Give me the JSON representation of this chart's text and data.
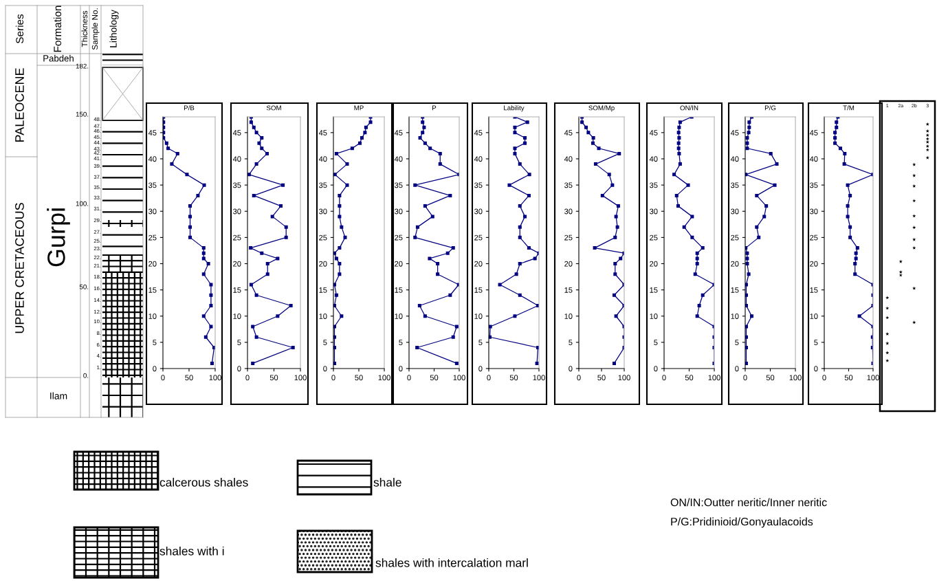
{
  "chart_data": [
    {
      "type": "other",
      "annotations": [
        "Series",
        "Formation",
        "Thickness",
        "Sample No.",
        "Lithology",
        "Pabdeh",
        "PALEOCENE",
        "UPPER CRETACEOUS",
        "Gurpi",
        "Ilam",
        "182.",
        "150.",
        "100.",
        "50.",
        "0.",
        "48.",
        "47.",
        "46.",
        "45.",
        "44.",
        "43.",
        "42.",
        "41.",
        "39.",
        "37.",
        "35.",
        "33.",
        "31.",
        "29.",
        "27.",
        "25.",
        "23.",
        "22.",
        "21.",
        "18.",
        "16.",
        "14.",
        "12.",
        "10.",
        "8.",
        "6.",
        "4.",
        "1."
      ]
    },
    {
      "type": "line",
      "title": "P/B",
      "xlim": [
        0,
        100
      ],
      "ylim": [
        0,
        48
      ],
      "xticks": [
        0,
        50,
        100
      ],
      "yticks": [
        0,
        5,
        10,
        15,
        20,
        25,
        30,
        35,
        40,
        45
      ],
      "marker": "square",
      "series": [
        {
          "color": "#000080",
          "x": [
            94,
            98,
            82,
            92,
            78,
            92,
            92,
            92,
            78,
            87,
            78,
            78,
            78,
            52,
            52,
            52,
            52,
            67,
            79,
            46,
            17,
            28,
            10,
            7,
            1,
            1,
            1,
            1,
            1
          ],
          "values": [
            1,
            4,
            6,
            8,
            10,
            12,
            14,
            16,
            18,
            20,
            21,
            22,
            23,
            25,
            27,
            29,
            31,
            33,
            35,
            37,
            39,
            41,
            42,
            43,
            44,
            45,
            46,
            47,
            48
          ]
        }
      ]
    },
    {
      "type": "line",
      "title": "SOM",
      "xlim": [
        0,
        100
      ],
      "ylim": [
        0,
        48
      ],
      "xticks": [
        0,
        50,
        100
      ],
      "yticks": [
        0,
        5,
        10,
        15,
        20,
        25,
        30,
        35,
        40,
        45
      ],
      "marker": "square",
      "series": [
        {
          "color": "#000080",
          "x": [
            10,
            86,
            17,
            10,
            57,
            82,
            17,
            7,
            38,
            38,
            57,
            27,
            6,
            73,
            73,
            47,
            63,
            12,
            67,
            3,
            17,
            37,
            27,
            22,
            27,
            17,
            12,
            7,
            7
          ],
          "values": [
            1,
            4,
            6,
            8,
            10,
            12,
            14,
            16,
            18,
            20,
            21,
            22,
            23,
            25,
            27,
            29,
            31,
            33,
            35,
            37,
            39,
            41,
            42,
            43,
            44,
            45,
            46,
            47,
            48
          ]
        }
      ]
    },
    {
      "type": "line",
      "title": "MP",
      "xlim": [
        0,
        100
      ],
      "ylim": [
        0,
        48
      ],
      "xticks": [
        0,
        50,
        100
      ],
      "yticks": [
        0,
        5,
        10,
        15,
        20,
        25,
        30,
        35,
        40,
        45
      ],
      "marker": "square",
      "series": [
        {
          "color": "#000080",
          "x": [
            2,
            2,
            2,
            2,
            16,
            2,
            6,
            2,
            12,
            12,
            6,
            2,
            12,
            23,
            16,
            12,
            12,
            12,
            27,
            3,
            27,
            6,
            37,
            52,
            56,
            62,
            64,
            73,
            73
          ],
          "values": [
            1,
            4,
            6,
            8,
            10,
            12,
            14,
            16,
            18,
            20,
            21,
            22,
            23,
            25,
            27,
            29,
            31,
            33,
            35,
            37,
            39,
            41,
            42,
            43,
            44,
            45,
            46,
            47,
            48
          ]
        }
      ]
    },
    {
      "type": "line",
      "title": "P",
      "xlim": [
        0,
        100
      ],
      "ylim": [
        0,
        48
      ],
      "xticks": [
        0,
        50,
        100
      ],
      "yticks": [
        0,
        5,
        10,
        15,
        20,
        25,
        30,
        35,
        40,
        45
      ],
      "marker": "square",
      "series": [
        {
          "color": "#000080",
          "x": [
            95,
            16,
            88,
            95,
            32,
            21,
            82,
            99,
            57,
            57,
            41,
            77,
            88,
            12,
            17,
            47,
            32,
            82,
            12,
            100,
            62,
            62,
            42,
            32,
            22,
            27,
            30,
            27,
            27
          ],
          "values": [
            1,
            4,
            6,
            8,
            10,
            12,
            14,
            16,
            18,
            20,
            21,
            22,
            23,
            25,
            27,
            29,
            31,
            33,
            35,
            37,
            39,
            41,
            42,
            43,
            44,
            45,
            46,
            47,
            48
          ]
        }
      ]
    },
    {
      "type": "line",
      "title": "Lability",
      "xlim": [
        0,
        100
      ],
      "ylim": [
        0,
        48
      ],
      "xticks": [
        0,
        50,
        100
      ],
      "yticks": [
        0,
        5,
        10,
        15,
        20,
        25,
        30,
        35,
        40,
        45
      ],
      "marker": "square",
      "series": [
        {
          "color": "#000080",
          "x": [
            96,
            98,
            2,
            3,
            52,
            98,
            62,
            22,
            55,
            62,
            92,
            100,
            80,
            62,
            62,
            72,
            62,
            80,
            41,
            81,
            62,
            52,
            52,
            72,
            72,
            52,
            52,
            77,
            52
          ],
          "values": [
            1,
            4,
            6,
            8,
            10,
            12,
            14,
            16,
            18,
            20,
            21,
            22,
            23,
            25,
            27,
            29,
            31,
            33,
            35,
            37,
            39,
            41,
            42,
            43,
            44,
            45,
            46,
            47,
            48
          ]
        }
      ]
    },
    {
      "type": "line",
      "title": "SOM/Mp",
      "xlim": [
        0,
        100
      ],
      "ylim": [
        0,
        48
      ],
      "xticks": [
        0,
        50,
        100
      ],
      "yticks": [
        0,
        5,
        10,
        15,
        20,
        25,
        30,
        35,
        40,
        45
      ],
      "marker": "square",
      "series": [
        {
          "color": "#000080",
          "x": [
            78,
            100,
            100,
            100,
            82,
            100,
            78,
            100,
            80,
            80,
            92,
            100,
            35,
            80,
            85,
            82,
            87,
            52,
            74,
            67,
            37,
            89,
            44,
            31,
            32,
            21,
            16,
            7,
            7
          ],
          "values": [
            1,
            4,
            6,
            8,
            10,
            12,
            14,
            16,
            18,
            20,
            21,
            22,
            23,
            25,
            27,
            29,
            31,
            33,
            35,
            37,
            39,
            41,
            42,
            43,
            44,
            45,
            46,
            47,
            48
          ]
        }
      ]
    },
    {
      "type": "line",
      "title": "ON/IN",
      "xlim": [
        0,
        100
      ],
      "ylim": [
        0,
        48
      ],
      "xticks": [
        0,
        50,
        100
      ],
      "yticks": [
        0,
        5,
        10,
        15,
        20,
        25,
        30,
        35,
        40,
        45
      ],
      "marker": "square",
      "series": [
        {
          "color": "#000080",
          "x": [
            100,
            100,
            100,
            100,
            66,
            70,
            77,
            100,
            62,
            66,
            66,
            66,
            77,
            56,
            40,
            56,
            28,
            25,
            48,
            20,
            32,
            30,
            29,
            29,
            30,
            29,
            30,
            32,
            55
          ],
          "values": [
            1,
            4,
            6,
            8,
            10,
            12,
            14,
            16,
            18,
            20,
            21,
            22,
            23,
            25,
            27,
            29,
            31,
            33,
            35,
            37,
            39,
            41,
            42,
            43,
            44,
            45,
            46,
            47,
            48
          ]
        }
      ]
    },
    {
      "type": "line",
      "title": "P/G",
      "xlim": [
        0,
        100
      ],
      "ylim": [
        0,
        48
      ],
      "xticks": [
        0,
        50,
        100
      ],
      "yticks": [
        0,
        5,
        10,
        15,
        20,
        25,
        30,
        35,
        40,
        45
      ],
      "marker": "square",
      "series": [
        {
          "color": "#000080",
          "x": [
            2,
            2,
            2,
            2,
            13,
            2,
            2,
            2,
            7,
            4,
            4,
            4,
            1,
            27,
            23,
            38,
            42,
            23,
            59,
            1,
            63,
            51,
            4,
            4,
            4,
            7,
            8,
            8,
            13
          ],
          "values": [
            1,
            4,
            6,
            8,
            10,
            12,
            14,
            16,
            18,
            20,
            21,
            22,
            23,
            25,
            27,
            29,
            31,
            33,
            35,
            37,
            39,
            41,
            42,
            43,
            44,
            45,
            46,
            47,
            48
          ]
        }
      ]
    },
    {
      "type": "line",
      "title": "T/M",
      "xlim": [
        0,
        100
      ],
      "ylim": [
        0,
        48
      ],
      "xticks": [
        0,
        50,
        100
      ],
      "yticks": [
        0,
        5,
        10,
        15,
        20,
        25,
        30,
        35,
        40,
        45
      ],
      "marker": "square",
      "series": [
        {
          "color": "#000080",
          "x": [
            100,
            99,
            99,
            100,
            72,
            100,
            100,
            100,
            63,
            63,
            65,
            65,
            68,
            53,
            53,
            48,
            48,
            53,
            48,
            100,
            41,
            42,
            33,
            22,
            22,
            22,
            25,
            25,
            28
          ],
          "values": [
            1,
            4,
            6,
            8,
            10,
            12,
            14,
            16,
            18,
            20,
            21,
            22,
            23,
            25,
            27,
            29,
            31,
            33,
            35,
            37,
            39,
            41,
            42,
            43,
            44,
            45,
            46,
            47,
            48
          ]
        }
      ]
    },
    {
      "type": "scatter",
      "categories": [
        "1",
        "2a",
        "2b",
        "3"
      ],
      "ylim": [
        0,
        48
      ],
      "tick_labels": "x",
      "marker": "star",
      "series": [
        {
          "color": "#000000",
          "x": [
            "1",
            "1",
            "1",
            "1",
            "1",
            "1",
            "1",
            "2a",
            "2a",
            "2a",
            "2b",
            "2b",
            "2b",
            "2b",
            "2b",
            "2b",
            "2b",
            "2b",
            "2b",
            "2b",
            "3",
            "3",
            "3",
            "3",
            "3",
            "3",
            "3",
            "3"
          ],
          "values": [
            13.5,
            11.5,
            9.7,
            6.6,
            4.8,
            3.0,
            1.5,
            20.4,
            18.4,
            17.8,
            38.9,
            36.8,
            34.8,
            32.0,
            29.1,
            26.9,
            24.6,
            23.0,
            15.3,
            8.8,
            46.6,
            45.3,
            44.5,
            43.8,
            43.2,
            42.4,
            41.7,
            40.2
          ]
        }
      ]
    },
    {
      "type": "other",
      "annotations": [
        "calcerous shales",
        "shale",
        "shales with i",
        "shales with intercalation marl",
        "ON/IN:Outter neritic/Inner neritic",
        "P/G:Pridinioid/Gonyaulacoids"
      ]
    }
  ]
}
